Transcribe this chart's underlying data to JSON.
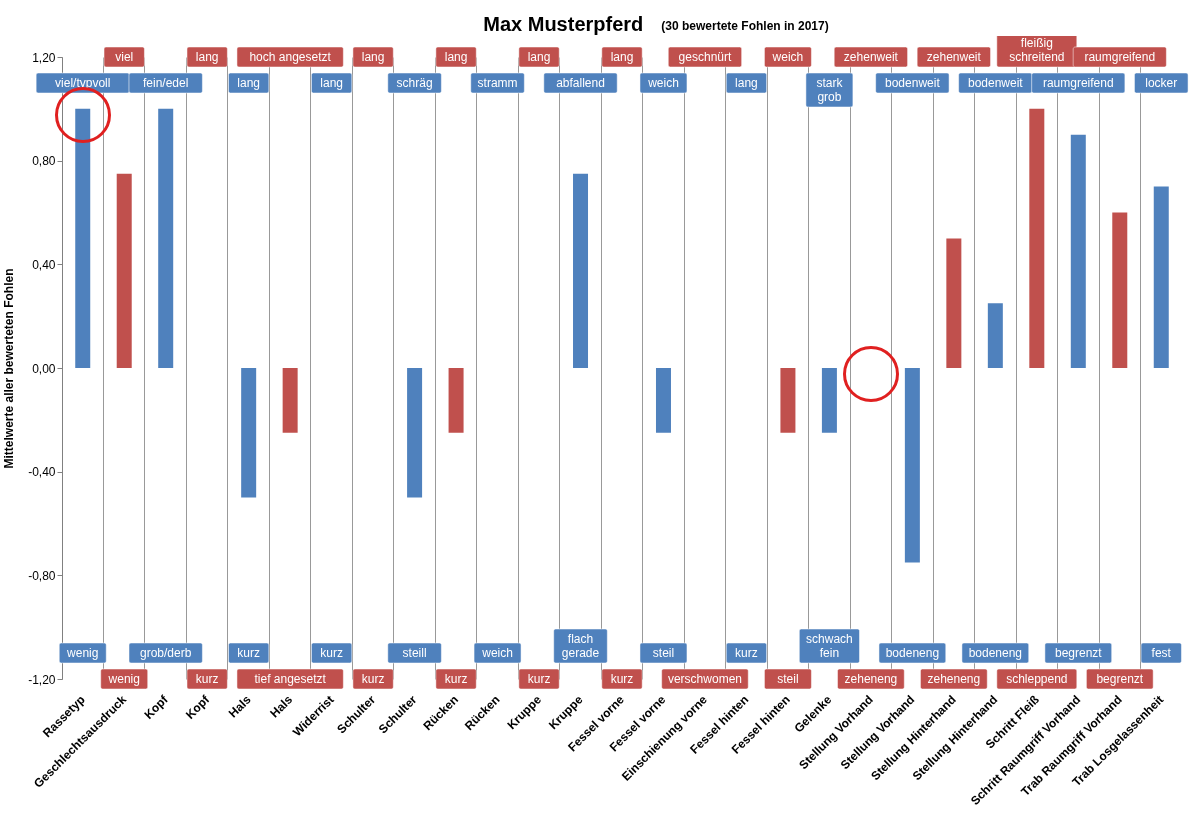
{
  "chart_data": {
    "type": "bar",
    "title": "Max Musterpferd",
    "subtitle": "(30 bewertete Fohlen in 2017)",
    "ylabel": "Mittelwerte aller bewerteten Fohlen",
    "categories": [
      "Rassetyp",
      "Geschlechtsausdruck",
      "Kopf",
      "Kopf",
      "Hals",
      "Hals",
      "Widerrist",
      "Schulter",
      "Schulter",
      "Rücken",
      "Rücken",
      "Kruppe",
      "Kruppe",
      "Fessel vorne",
      "Fessel vorne",
      "Einschienung vorne",
      "Fessel hinten",
      "Fessel hinten",
      "Gelenke",
      "Stellung Vorhand",
      "Stellung Vorhand",
      "Stellung Hinterhand",
      "Stellung Hinterhand",
      "Schritt Fleiß",
      "Schritt Raumgriff Vorhand",
      "Trab Raumgriff Vorhand",
      "Trab Losgelassenheit"
    ],
    "values": [
      1.0,
      0.75,
      1.0,
      0,
      -0.5,
      -0.25,
      0,
      0,
      -0.5,
      -0.25,
      0,
      0,
      0.75,
      0,
      -0.25,
      0,
      0,
      -0.25,
      -0.25,
      0,
      -0.75,
      0.5,
      0.25,
      1.0,
      0.9,
      0.6,
      0.7
    ],
    "colors": [
      "#4f81bd",
      "#c0504d",
      "#4f81bd",
      "#c0504d",
      "#4f81bd",
      "#c0504d",
      "#4f81bd",
      "#c0504d",
      "#4f81bd",
      "#c0504d",
      "#4f81bd",
      "#c0504d",
      "#4f81bd",
      "#c0504d",
      "#4f81bd",
      "#c0504d",
      "#4f81bd",
      "#c0504d",
      "#4f81bd",
      "#c0504d",
      "#4f81bd",
      "#c0504d",
      "#4f81bd",
      "#c0504d",
      "#4f81bd",
      "#c0504d",
      "#4f81bd"
    ],
    "ylim": [
      -1.2,
      1.2
    ],
    "yticks": [
      {
        "value": -1.2,
        "label": "-1,20"
      },
      {
        "value": -0.8,
        "label": "-0,80"
      },
      {
        "value": -0.4,
        "label": "-0,40"
      },
      {
        "value": 0,
        "label": "0,00"
      },
      {
        "value": 0.4,
        "label": "0,40"
      },
      {
        "value": 0.8,
        "label": "0,80"
      },
      {
        "value": 1.2,
        "label": "1,20"
      }
    ],
    "grid": "x",
    "annotations": [
      "viel/typvoll",
      "wenig",
      "viel",
      "wenig",
      "fein/edel",
      "grob/derb",
      "lang",
      "kurz",
      "lang",
      "kurz",
      "hoch angesetzt",
      "tief angesetzt",
      "lang",
      "kurz",
      "lang",
      "kurz",
      "schräg",
      "steill",
      "lang",
      "kurz",
      "stramm",
      "weich",
      "lang",
      "kurz",
      "abfallend",
      "flach\ngerade",
      "lang",
      "kurz",
      "weich",
      "steil",
      "geschnürt",
      "verschwomen",
      "lang",
      "kurz",
      "weich",
      "steil",
      "stark\ngrob",
      "schwach\nfein",
      "zehenweit",
      "zeheneng",
      "bodenweit",
      "bodeneng",
      "zehenweit",
      "zeheneng",
      "bodenweit",
      "bodeneng",
      "fleißig\nschreitend",
      "schleppend",
      "raumgreifend",
      "begrenzt",
      "raumgreifend",
      "begrenzt",
      "locker",
      "fest"
    ]
  }
}
